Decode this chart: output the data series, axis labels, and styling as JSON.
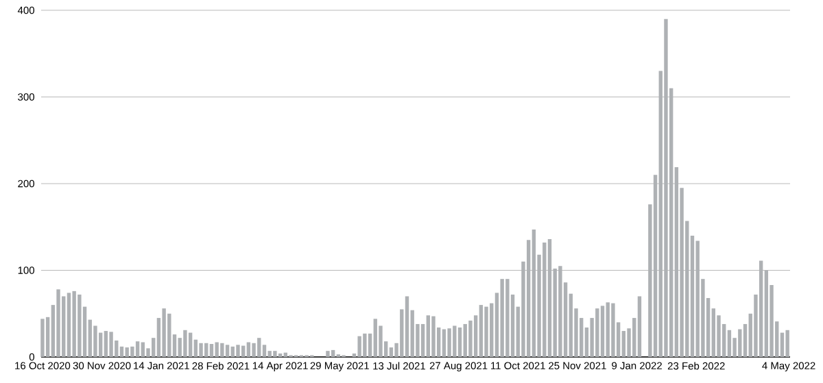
{
  "chart_data": {
    "type": "bar",
    "color": "#aeb1b4",
    "x": [
      "2020-10-16",
      "2020-10-20",
      "2020-10-24",
      "2020-10-28",
      "2020-11-01",
      "2020-11-05",
      "2020-11-09",
      "2020-11-13",
      "2020-11-17",
      "2020-11-21",
      "2020-11-25",
      "2020-11-29",
      "2020-12-03",
      "2020-12-07",
      "2020-12-11",
      "2020-12-15",
      "2020-12-19",
      "2020-12-23",
      "2020-12-27",
      "2020-12-31",
      "2021-01-04",
      "2021-01-08",
      "2021-01-12",
      "2021-01-16",
      "2021-01-20",
      "2021-01-24",
      "2021-01-28",
      "2021-02-01",
      "2021-02-05",
      "2021-02-09",
      "2021-02-13",
      "2021-02-17",
      "2021-02-21",
      "2021-02-25",
      "2021-03-01",
      "2021-03-05",
      "2021-03-09",
      "2021-03-13",
      "2021-03-17",
      "2021-03-21",
      "2021-03-25",
      "2021-03-29",
      "2021-04-02",
      "2021-04-06",
      "2021-04-10",
      "2021-04-14",
      "2021-04-18",
      "2021-04-22",
      "2021-04-26",
      "2021-04-30",
      "2021-05-04",
      "2021-05-08",
      "2021-05-12",
      "2021-05-16",
      "2021-05-20",
      "2021-05-24",
      "2021-05-28",
      "2021-06-01",
      "2021-06-05",
      "2021-06-09",
      "2021-06-13",
      "2021-06-17",
      "2021-06-21",
      "2021-06-25",
      "2021-06-29",
      "2021-07-03",
      "2021-07-07",
      "2021-07-11",
      "2021-07-15",
      "2021-07-19",
      "2021-07-23",
      "2021-07-27",
      "2021-07-31",
      "2021-08-04",
      "2021-08-08",
      "2021-08-12",
      "2021-08-16",
      "2021-08-20",
      "2021-08-24",
      "2021-08-28",
      "2021-09-01",
      "2021-09-05",
      "2021-09-09",
      "2021-09-13",
      "2021-09-17",
      "2021-09-21",
      "2021-09-25",
      "2021-09-29",
      "2021-10-03",
      "2021-10-07",
      "2021-10-11",
      "2021-10-15",
      "2021-10-19",
      "2021-10-23",
      "2021-10-27",
      "2021-10-31",
      "2021-11-04",
      "2021-11-08",
      "2021-11-12",
      "2021-11-16",
      "2021-11-20",
      "2021-11-24",
      "2021-11-28",
      "2021-12-02",
      "2021-12-06",
      "2021-12-10",
      "2021-12-14",
      "2021-12-18",
      "2021-12-22",
      "2021-12-26",
      "2021-12-30",
      "2022-01-03",
      "2022-01-07",
      "2022-01-11",
      "2022-01-15",
      "2022-01-19",
      "2022-01-23",
      "2022-01-27",
      "2022-01-31",
      "2022-02-04",
      "2022-02-08",
      "2022-02-12",
      "2022-02-16",
      "2022-02-20",
      "2022-02-24",
      "2022-02-28",
      "2022-03-04",
      "2022-03-08",
      "2022-03-12",
      "2022-03-16",
      "2022-03-20",
      "2022-03-24",
      "2022-03-28",
      "2022-04-01",
      "2022-04-05",
      "2022-04-09",
      "2022-04-13",
      "2022-04-17",
      "2022-04-21",
      "2022-04-25",
      "2022-04-29",
      "2022-05-03"
    ],
    "values": [
      44,
      46,
      60,
      78,
      70,
      74,
      76,
      72,
      58,
      43,
      36,
      28,
      30,
      29,
      19,
      12,
      11,
      12,
      18,
      17,
      10,
      22,
      45,
      56,
      50,
      26,
      22,
      31,
      28,
      20,
      16,
      16,
      15,
      17,
      16,
      14,
      12,
      14,
      13,
      17,
      16,
      22,
      14,
      7,
      7,
      4,
      5,
      2,
      2,
      2,
      2,
      2,
      0,
      0,
      7,
      8,
      3,
      2,
      0,
      4,
      24,
      27,
      27,
      44,
      36,
      18,
      11,
      16,
      55,
      70,
      54,
      38,
      38,
      48,
      47,
      34,
      32,
      33,
      36,
      34,
      38,
      42,
      48,
      60,
      58,
      62,
      74,
      90,
      90,
      72,
      58,
      110,
      135,
      147,
      118,
      132,
      136,
      102,
      105,
      86,
      73,
      56,
      45,
      34,
      45,
      56,
      59,
      63,
      62,
      40,
      30,
      33,
      45,
      70,
      null,
      176,
      210,
      330,
      390,
      310,
      219,
      195,
      157,
      140,
      134,
      90,
      68,
      56,
      48,
      38,
      31,
      22,
      32,
      38,
      50,
      72,
      111,
      100,
      83,
      41,
      28,
      31
    ],
    "xlim": [
      "2020-10-15",
      "2022-05-05"
    ],
    "xticks": [
      {
        "value": "2020-10-16",
        "label": "16 Oct 2020"
      },
      {
        "value": "2020-11-30",
        "label": "30 Nov 2020"
      },
      {
        "value": "2021-01-14",
        "label": "14 Jan 2021"
      },
      {
        "value": "2021-02-28",
        "label": "28 Feb 2021"
      },
      {
        "value": "2021-04-14",
        "label": "14 Apr 2021"
      },
      {
        "value": "2021-05-29",
        "label": "29 May 2021"
      },
      {
        "value": "2021-07-13",
        "label": "13 Jul 2021"
      },
      {
        "value": "2021-08-27",
        "label": "27 Aug 2021"
      },
      {
        "value": "2021-10-11",
        "label": "11 Oct 2021"
      },
      {
        "value": "2021-11-25",
        "label": "25 Nov 2021"
      },
      {
        "value": "2022-01-09",
        "label": "9 Jan 2022"
      },
      {
        "value": "2022-02-23",
        "label": "23 Feb 2022"
      },
      {
        "value": "2022-05-04",
        "label": "4 May 2022"
      }
    ],
    "ylim": [
      0,
      400
    ],
    "yticks": [
      0,
      100,
      200,
      300,
      400
    ],
    "grid": "y"
  }
}
